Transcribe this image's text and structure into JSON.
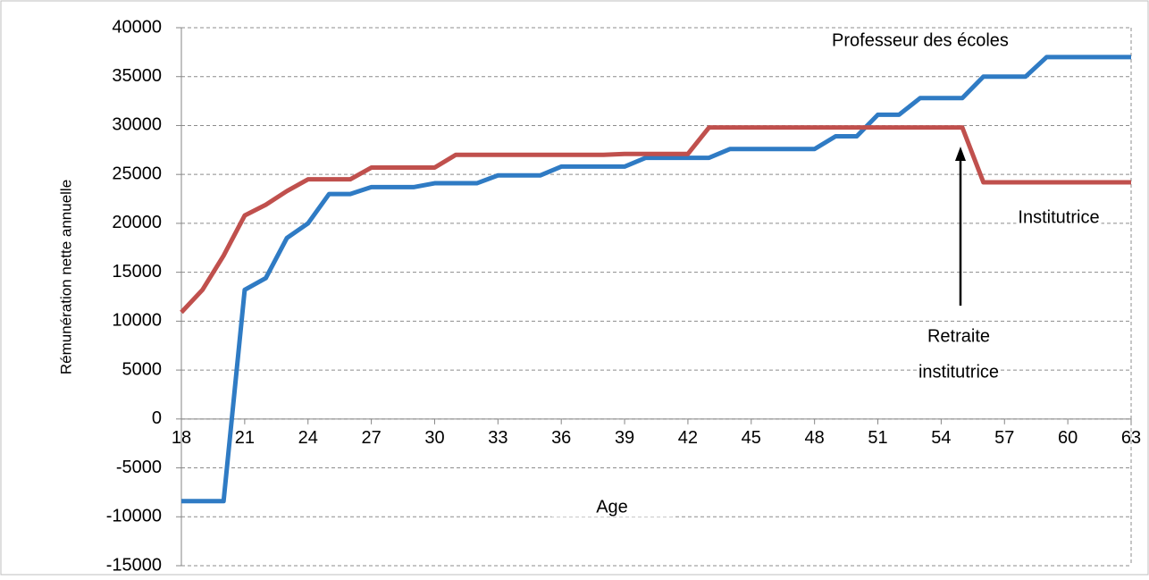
{
  "chart_data": {
    "type": "line",
    "x_label": "Age",
    "y_label": "Rémunération nette annuelle",
    "x": [
      18,
      19,
      20,
      21,
      22,
      23,
      24,
      25,
      26,
      27,
      28,
      29,
      30,
      31,
      32,
      33,
      34,
      35,
      36,
      37,
      38,
      39,
      40,
      41,
      42,
      43,
      44,
      45,
      46,
      47,
      48,
      49,
      50,
      51,
      52,
      53,
      54,
      55,
      56,
      57,
      58,
      59,
      60,
      61,
      62,
      63
    ],
    "series": [
      {
        "name": "Professeur des écoles",
        "color": "#2f7bc4",
        "values": [
          -8400,
          -8400,
          -8400,
          13200,
          14400,
          18500,
          20000,
          23000,
          23000,
          23700,
          23700,
          23700,
          24100,
          24100,
          24100,
          24900,
          24900,
          24900,
          25800,
          25800,
          25800,
          25800,
          26700,
          26700,
          26700,
          26700,
          27600,
          27600,
          27600,
          27600,
          27600,
          28900,
          28900,
          31100,
          31100,
          32800,
          32800,
          32800,
          35000,
          35000,
          35000,
          37000,
          37000,
          37000,
          37000,
          37000
        ]
      },
      {
        "name": "Institutrice",
        "color": "#c0504d",
        "values": [
          10900,
          13200,
          16700,
          20800,
          21900,
          23300,
          24500,
          24500,
          24500,
          25700,
          25700,
          25700,
          25700,
          27000,
          27000,
          27000,
          27000,
          27000,
          27000,
          27000,
          27000,
          27100,
          27100,
          27100,
          27100,
          29800,
          29800,
          29800,
          29800,
          29800,
          29800,
          29800,
          29800,
          29800,
          29800,
          29800,
          29800,
          29800,
          24200,
          24200,
          24200,
          24200,
          24200,
          24200,
          24200,
          24200
        ]
      }
    ],
    "annotation": [
      "Retraite",
      "institutrice"
    ],
    "xlim": [
      18,
      63
    ],
    "xticks": [
      18,
      21,
      24,
      27,
      30,
      33,
      36,
      39,
      42,
      45,
      48,
      51,
      54,
      57,
      60,
      63
    ],
    "ylim": [
      -15000,
      40000
    ],
    "yticks": [
      -15000,
      -10000,
      -5000,
      0,
      5000,
      10000,
      15000,
      20000,
      25000,
      30000,
      35000,
      40000
    ],
    "grid": true
  }
}
